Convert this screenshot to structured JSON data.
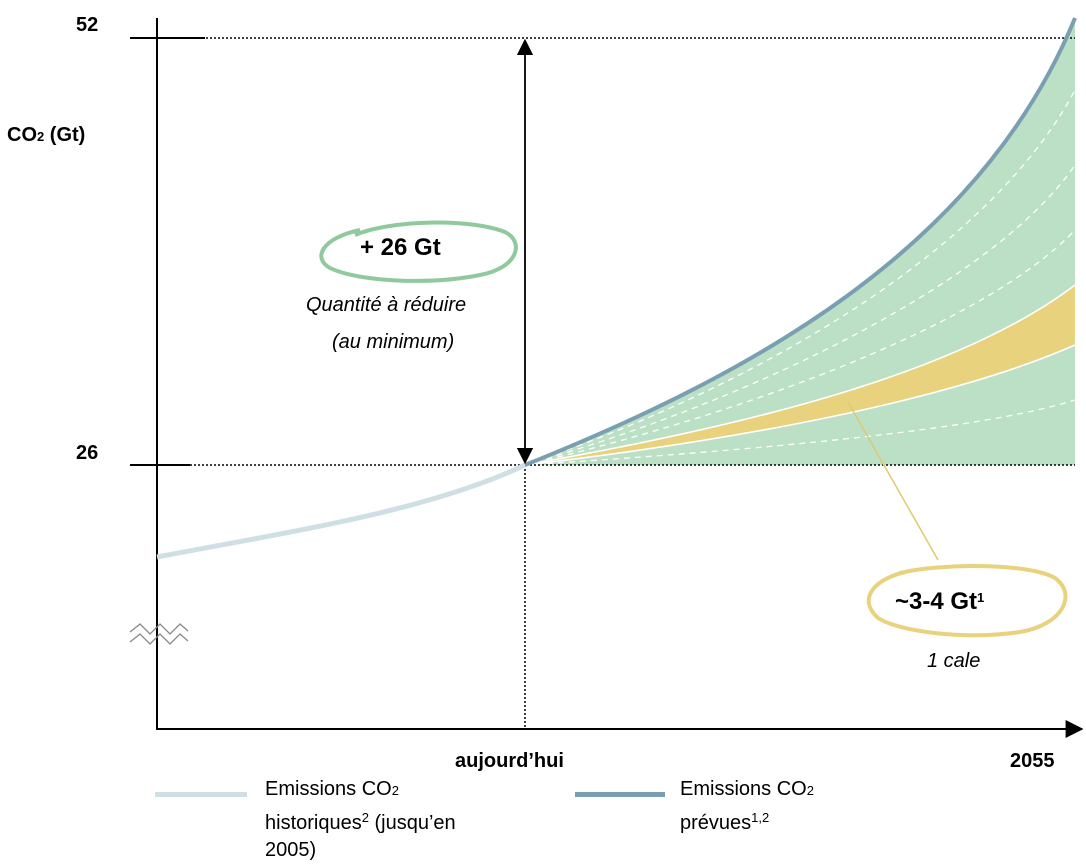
{
  "chart_data": {
    "type": "area",
    "ylabel": "CO",
    "ylabel_sub": "2",
    "ylabel_unit": "(Gt)",
    "y_ticks": [
      "52",
      "26"
    ],
    "y_values": [
      52,
      26
    ],
    "x_tick_today": "aujourd’hui",
    "x_tick_end": "2055",
    "series": [
      {
        "name": "Emissions CO2 historiques (jusqu’en 2005)",
        "role": "historical",
        "color": "#d0dfe3"
      },
      {
        "name": "Emissions CO2 prévues",
        "role": "projected",
        "color": "#7a9fb1"
      }
    ],
    "projected_start": 26,
    "projected_end": 52,
    "wedge_fill_color": "#bbe0c6",
    "highlight_wedge_color": "#e8d27e",
    "gap_label": "+ 26 Gt",
    "gap_caption_line1": "Quantité à réduire",
    "gap_caption_line2": "(au minimum)",
    "wedge_label": "~3-4 Gt",
    "wedge_label_sup": "1",
    "wedge_caption": "1 cale"
  },
  "legend": {
    "historical": {
      "line1": "Emissions CO",
      "line1_sub": "2",
      "line2_a": "historiques",
      "line2_sup": "2",
      "line2_b": " (jusqu’en",
      "line3": "2005)",
      "color": "#d0dfe3"
    },
    "projected": {
      "line1": "Emissions CO",
      "line1_sub": "2",
      "line2_a": "prévues",
      "line2_sup": "1,2",
      "color": "#7a9fb1"
    }
  }
}
